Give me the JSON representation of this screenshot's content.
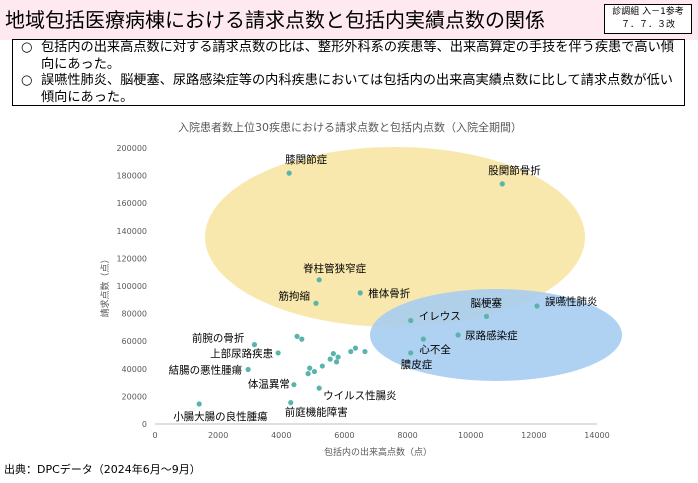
{
  "header": {
    "title": "地域包括医療病棟における請求点数と包括内実績点数の関係",
    "ref_line1": "診調組 入－1参考",
    "ref_line2": "７．７．３改"
  },
  "summary": {
    "items": [
      {
        "mark": "○",
        "text": "包括内の出来高点数に対する請求点数の比は、整形外科系の疾患等、出来高算定の手技を伴う疾患で高い傾向にあった。"
      },
      {
        "mark": "○",
        "text": "誤嚥性肺炎、脳梗塞、尿路感染症等の内科疾患においては包括内の出来高実績点数に比して請求点数が低い傾向にあった。"
      }
    ]
  },
  "source": "出典：DPCデータ（2024年6月～9月）",
  "chart_data": {
    "type": "scatter",
    "title": "入院患者数上位30疾患における請求点数と包括内点数（入院全期間）",
    "xlabel": "包括内の出来高点数（点）",
    "ylabel": "請求点数（点）",
    "xlim": [
      0,
      14000
    ],
    "ylim": [
      0,
      200000
    ],
    "x_ticks": [
      0,
      2000,
      4000,
      6000,
      8000,
      10000,
      12000,
      14000
    ],
    "y_ticks": [
      0,
      20000,
      40000,
      60000,
      80000,
      100000,
      120000,
      140000,
      160000,
      180000,
      200000
    ],
    "grid": false,
    "point_color": "#5ab4ac",
    "points": [
      {
        "x": 4250,
        "y": 181800,
        "label": "膝関節症"
      },
      {
        "x": 11000,
        "y": 174000,
        "label": "股関節骨折"
      },
      {
        "x": 5200,
        "y": 104500,
        "label": "脊柱管狭窄症"
      },
      {
        "x": 6500,
        "y": 95000,
        "label": "椎体骨折"
      },
      {
        "x": 5100,
        "y": 87500,
        "label": "筋拘縮"
      },
      {
        "x": 12100,
        "y": 85500,
        "label": "誤嚥性肺炎"
      },
      {
        "x": 10500,
        "y": 78000,
        "label": "脳梗塞"
      },
      {
        "x": 8100,
        "y": 75000,
        "label": "イレウス"
      },
      {
        "x": 9600,
        "y": 64500,
        "label": "尿路感染症"
      },
      {
        "x": 8500,
        "y": 61500,
        "label": "心不全"
      },
      {
        "x": 8100,
        "y": 51500,
        "label": "膿皮症"
      },
      {
        "x": 4500,
        "y": 63500,
        "label": ""
      },
      {
        "x": 4650,
        "y": 61500,
        "label": ""
      },
      {
        "x": 3150,
        "y": 57500,
        "label": "前腕の骨折"
      },
      {
        "x": 3900,
        "y": 51500,
        "label": "上部尿路疾患"
      },
      {
        "x": 2950,
        "y": 39500,
        "label": "結腸の悪性腫瘍"
      },
      {
        "x": 4400,
        "y": 28500,
        "label": "体温異常"
      },
      {
        "x": 5200,
        "y": 26000,
        "label": "ウイルス性腸炎"
      },
      {
        "x": 1400,
        "y": 14500,
        "label": "小腸大腸の良性腫瘍"
      },
      {
        "x": 4300,
        "y": 15500,
        "label": "前庭機能障害"
      },
      {
        "x": 6200,
        "y": 52500,
        "label": ""
      },
      {
        "x": 6350,
        "y": 55000,
        "label": ""
      },
      {
        "x": 6650,
        "y": 52500,
        "label": ""
      },
      {
        "x": 5650,
        "y": 51000,
        "label": ""
      },
      {
        "x": 5800,
        "y": 48500,
        "label": ""
      },
      {
        "x": 5550,
        "y": 47000,
        "label": ""
      },
      {
        "x": 5750,
        "y": 45000,
        "label": ""
      },
      {
        "x": 4900,
        "y": 40500,
        "label": ""
      },
      {
        "x": 5050,
        "y": 38000,
        "label": ""
      },
      {
        "x": 4850,
        "y": 36500,
        "label": ""
      },
      {
        "x": 5300,
        "y": 42000,
        "label": ""
      }
    ],
    "groups": [
      {
        "name": "surgical",
        "color": "#f7e4a0"
      },
      {
        "name": "medical",
        "color": "#a7cdf1"
      }
    ]
  }
}
